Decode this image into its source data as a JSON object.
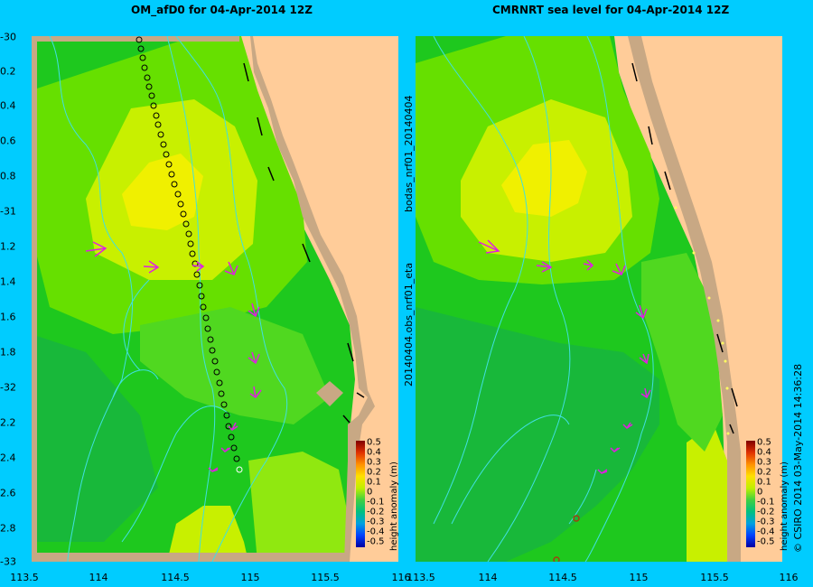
{
  "panels": [
    {
      "title": "OM_afD0 for 04-Apr-2014 12Z"
    },
    {
      "title": "CMRNRT sea level  for 04-Apr-2014 12Z"
    }
  ],
  "x_axis_labels": [
    "113.5",
    "114",
    "114.5",
    "115",
    "115.5",
    "116"
  ],
  "left_x_last_label": "116",
  "y_axis_labels": [
    "-30",
    "0.2",
    "0.4",
    "0.6",
    "0.8",
    "-31",
    "1.2",
    "1.4",
    "1.6",
    "1.8",
    "-32",
    "2.2",
    "2.4",
    "2.6",
    "2.8",
    "-33"
  ],
  "side_label_top": "bodas_nrf01_20140404",
  "side_label_bottom": "20140404.obs_nrf01_eta",
  "credit": "© CSIRO  2014   03-May-2014 14:36:28",
  "colorbar": {
    "unit_label": "height anomaly (m)",
    "ticks": [
      "0.5",
      "0.4",
      "0.3",
      "0.2",
      "0.1",
      "0",
      "-0.1",
      "-0.2",
      "-0.3",
      "-0.4",
      "-0.5"
    ]
  },
  "colors": {
    "background": "#00ccff",
    "land": "#ffcc99",
    "shelf": "#c8a884",
    "arrow": "#e020e0",
    "contour": "#40e0e0"
  }
}
